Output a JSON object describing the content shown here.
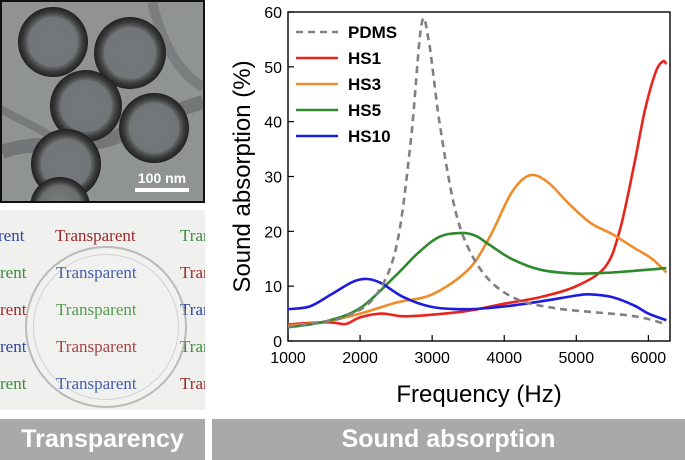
{
  "tem_image": {
    "scale_label": "100 nm"
  },
  "transparency_photo": {
    "sample_word": "Transparent",
    "rows": [
      {
        "left": "rent",
        "center": "Transparent",
        "right": "Trans",
        "colors": [
          "#2b47a3",
          "#9b2a2a",
          "#3c8c3c"
        ]
      },
      {
        "left": "rent",
        "center": "Transparent",
        "right": "Tran",
        "colors": [
          "#3c8c3c",
          "#2b47a3",
          "#9b2a2a"
        ]
      },
      {
        "left": "rent",
        "center": "Transparent",
        "right": "Tran",
        "colors": [
          "#9b2a2a",
          "#3c8c3c",
          "#2b47a3"
        ]
      },
      {
        "left": "rent",
        "center": "Transparent",
        "right": "Tran",
        "colors": [
          "#2b47a3",
          "#9b2a2a",
          "#3c8c3c"
        ]
      },
      {
        "left": "rent",
        "center": "Transparent",
        "right": "Tran",
        "colors": [
          "#3c8c3c",
          "#2b47a3",
          "#9b2a2a"
        ]
      }
    ]
  },
  "banners": {
    "left": "Transparency",
    "right": "Sound absorption"
  },
  "chart_data": {
    "type": "line",
    "xlabel": "Frequency (Hz)",
    "ylabel": "Sound absorption (%)",
    "xlim": [
      1000,
      6300
    ],
    "ylim": [
      0,
      60
    ],
    "xticks": [
      1000,
      2000,
      3000,
      4000,
      5000,
      6000
    ],
    "yticks": [
      0,
      10,
      20,
      30,
      40,
      50,
      60
    ],
    "legend_position": "top-left",
    "series": [
      {
        "name": "PDMS",
        "color": "#808080",
        "dash": true,
        "x": [
          1000,
          1400,
          1800,
          2200,
          2500,
          2700,
          2850,
          2950,
          3100,
          3300,
          3500,
          3800,
          4200,
          4700,
          5200,
          5700,
          6000,
          6250
        ],
        "y": [
          2.6,
          3.3,
          4.5,
          8,
          17,
          36,
          57.5,
          55,
          40,
          25,
          17,
          11,
          7.5,
          6,
          5.3,
          4.7,
          4,
          3
        ]
      },
      {
        "name": "HS1",
        "color": "#e8241c",
        "dash": false,
        "x": [
          1000,
          1300,
          1600,
          1800,
          2000,
          2300,
          2600,
          3000,
          3500,
          4000,
          4500,
          5000,
          5400,
          5600,
          5800,
          5950,
          6100,
          6200,
          6250
        ],
        "y": [
          3,
          3.3,
          3.4,
          3.1,
          4.3,
          5,
          4.5,
          4.8,
          5.5,
          6.8,
          8,
          10,
          13.5,
          20,
          32,
          42,
          49,
          51,
          50.5
        ]
      },
      {
        "name": "HS3",
        "color": "#f08c28",
        "dash": false,
        "x": [
          1000,
          1500,
          2000,
          2500,
          3000,
          3500,
          3800,
          4100,
          4350,
          4600,
          4900,
          5200,
          5500,
          5800,
          6050,
          6250
        ],
        "y": [
          2.8,
          3.5,
          5,
          7,
          8.5,
          13,
          19,
          27,
          30.2,
          29,
          25,
          21.5,
          19.5,
          17,
          15,
          12.5
        ]
      },
      {
        "name": "HS5",
        "color": "#2e8a2b",
        "dash": false,
        "x": [
          1000,
          1500,
          2000,
          2500,
          2800,
          3100,
          3400,
          3600,
          3800,
          4100,
          4500,
          5000,
          5500,
          6000,
          6250
        ],
        "y": [
          2.5,
          3.5,
          6,
          12,
          16,
          19,
          19.7,
          19.2,
          17.5,
          15,
          13,
          12.3,
          12.5,
          13,
          13.3
        ]
      },
      {
        "name": "HS10",
        "color": "#1c1ce0",
        "dash": false,
        "x": [
          1000,
          1300,
          1600,
          1900,
          2100,
          2300,
          2600,
          3000,
          3500,
          4000,
          4500,
          5000,
          5200,
          5500,
          5800,
          6000,
          6250
        ],
        "y": [
          5.8,
          6.3,
          8.5,
          10.8,
          11.3,
          10.5,
          8,
          6.2,
          5.8,
          6.3,
          7.2,
          8.3,
          8.5,
          8,
          6.5,
          5,
          3.8
        ]
      }
    ]
  }
}
